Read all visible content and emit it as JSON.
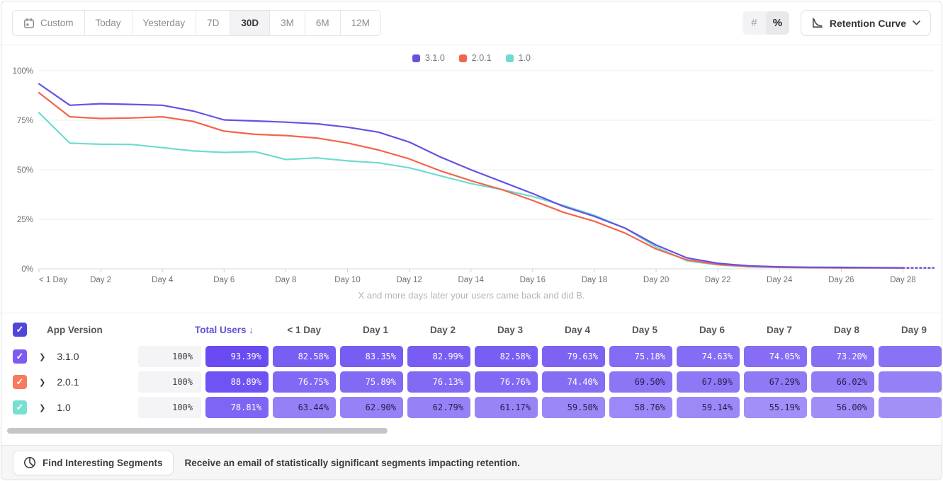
{
  "toolbar": {
    "ranges": [
      {
        "label": "Custom",
        "icon": "calendar",
        "active": false
      },
      {
        "label": "Today",
        "active": false
      },
      {
        "label": "Yesterday",
        "active": false
      },
      {
        "label": "7D",
        "active": false
      },
      {
        "label": "30D",
        "active": true
      },
      {
        "label": "3M",
        "active": false
      },
      {
        "label": "6M",
        "active": false
      },
      {
        "label": "12M",
        "active": false
      }
    ],
    "value_modes": [
      {
        "label": "#",
        "active": false
      },
      {
        "label": "%",
        "active": true
      }
    ],
    "view_selector_label": "Retention Curve"
  },
  "chart_data": {
    "type": "line",
    "x_days": 30,
    "x_tick_every": 2,
    "x_tick_labels": [
      "< 1 Day",
      "Day 2",
      "Day 4",
      "Day 6",
      "Day 8",
      "Day 10",
      "Day 12",
      "Day 14",
      "Day 16",
      "Day 18",
      "Day 20",
      "Day 22",
      "Day 24",
      "Day 26",
      "Day 28"
    ],
    "ylim": [
      0,
      100
    ],
    "y_ticks": [
      "0%",
      "25%",
      "50%",
      "75%",
      "100%"
    ],
    "grid": "horizontal",
    "legend_position": "top-center",
    "note": "X and more days later your users came back and did B.",
    "incomplete_tail_dashed": true,
    "series": [
      {
        "name": "1.0",
        "color": "#6fdbd1",
        "values": [
          78.81,
          63.44,
          62.9,
          62.79,
          61.17,
          59.5,
          58.76,
          59.14,
          55.19,
          56.0,
          54.5,
          53.5,
          51.0,
          47.0,
          43.0,
          40.0,
          36.5,
          32.0,
          27.0,
          20.5,
          11.0,
          4.0,
          2.0,
          1.0,
          0.7,
          0.6,
          0.5,
          0.5,
          0.4,
          0.4
        ]
      },
      {
        "name": "2.0.1",
        "color": "#f2654c",
        "values": [
          88.89,
          76.75,
          75.89,
          76.13,
          76.76,
          74.4,
          69.5,
          67.89,
          67.29,
          66.02,
          63.5,
          60.0,
          55.5,
          49.5,
          44.5,
          40.0,
          34.5,
          28.5,
          24.0,
          18.0,
          10.0,
          4.5,
          2.2,
          1.2,
          0.8,
          0.6,
          0.5,
          0.5,
          0.4,
          0.4
        ]
      },
      {
        "name": "3.1.0",
        "color": "#6552e3",
        "values": [
          93.39,
          82.58,
          83.35,
          82.99,
          82.58,
          79.63,
          75.18,
          74.63,
          74.05,
          73.2,
          71.5,
          69.0,
          64.0,
          56.5,
          50.0,
          44.0,
          38.0,
          31.5,
          26.5,
          20.5,
          12.0,
          5.5,
          2.8,
          1.5,
          1.0,
          0.8,
          0.7,
          0.6,
          0.5,
          0.5
        ]
      }
    ],
    "legend_order": [
      "3.1.0",
      "2.0.1",
      "1.0"
    ]
  },
  "table": {
    "version_header": "App Version",
    "users_header": "Total Users",
    "sort_indicator": "↓",
    "day_headers": [
      "< 1 Day",
      "Day 1",
      "Day 2",
      "Day 3",
      "Day 4",
      "Day 5",
      "Day 6",
      "Day 7",
      "Day 8",
      "Day 9"
    ],
    "select_all_checked": true,
    "select_all_color": "#5246d9",
    "rows": [
      {
        "version": "3.1.0",
        "checked": true,
        "checkbox_color": "#7d5bf1",
        "total_users": "100%",
        "cells": [
          "93.39%",
          "82.58%",
          "83.35%",
          "82.99%",
          "82.58%",
          "79.63%",
          "75.18%",
          "74.63%",
          "74.05%",
          "73.20%"
        ]
      },
      {
        "version": "2.0.1",
        "checked": true,
        "checkbox_color": "#f87a5e",
        "total_users": "100%",
        "cells": [
          "88.89%",
          "76.75%",
          "75.89%",
          "76.13%",
          "76.76%",
          "74.40%",
          "69.50%",
          "67.89%",
          "67.29%",
          "66.02%"
        ]
      },
      {
        "version": "1.0",
        "checked": true,
        "checkbox_color": "#78dfd3",
        "total_users": "100%",
        "cells": [
          "78.81%",
          "63.44%",
          "62.90%",
          "62.79%",
          "61.17%",
          "59.50%",
          "58.76%",
          "59.14%",
          "55.19%",
          "56.00%"
        ]
      }
    ]
  },
  "footer": {
    "button_label": "Find Interesting Segments",
    "message": "Receive an email of statistically significant segments impacting retention."
  }
}
